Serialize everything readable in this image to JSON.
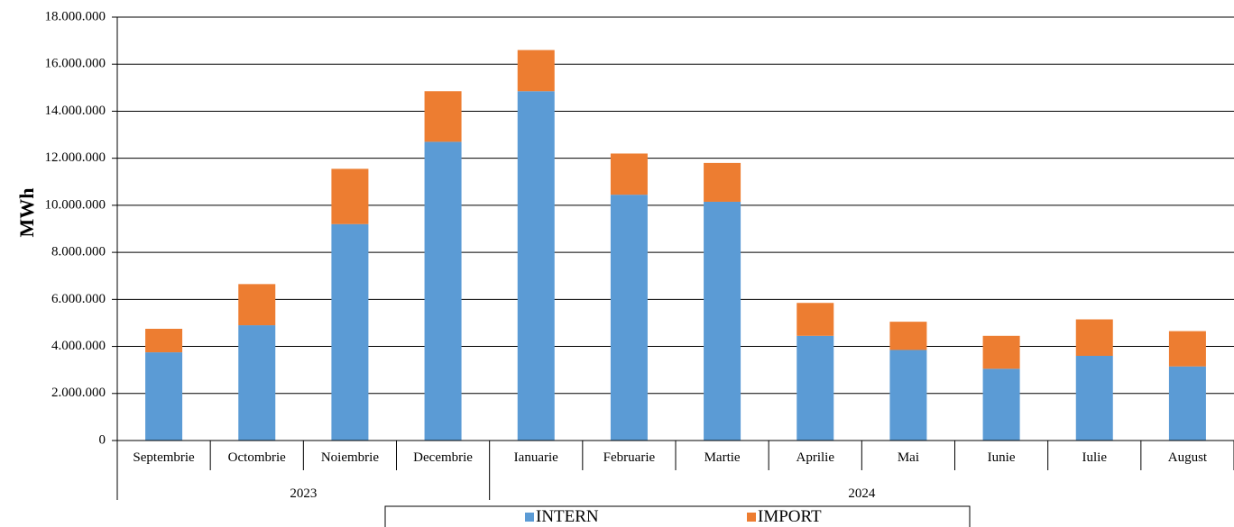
{
  "chart_data": {
    "type": "bar",
    "stacked": true,
    "ylabel": "MWh",
    "ylim": [
      0,
      18000000
    ],
    "ytick_step": 2000000,
    "yticks": [
      "0",
      "2.000.000",
      "4.000.000",
      "6.000.000",
      "8.000.000",
      "10.000.000",
      "12.000.000",
      "14.000.000",
      "16.000.000",
      "18.000.000"
    ],
    "categories": [
      "Septembrie",
      "Octombrie",
      "Noiembrie",
      "Decembrie",
      "Ianuarie",
      "Februarie",
      "Martie",
      "Aprilie",
      "Mai",
      "Iunie",
      "Iulie",
      "August"
    ],
    "groups": [
      {
        "label": "2023",
        "count": 4
      },
      {
        "label": "2024",
        "count": 8
      }
    ],
    "series": [
      {
        "name": "INTERN",
        "color": "#5b9bd5",
        "values": [
          3750000,
          4900000,
          9200000,
          12700000,
          14850000,
          10450000,
          10150000,
          4450000,
          3850000,
          3050000,
          3600000,
          3150000
        ]
      },
      {
        "name": "IMPORT",
        "color": "#ed7d31",
        "values": [
          1000000,
          1750000,
          2350000,
          2150000,
          1750000,
          1750000,
          1650000,
          1400000,
          1200000,
          1400000,
          1550000,
          1500000
        ]
      }
    ],
    "grid": true,
    "legend_position": "bottom"
  }
}
